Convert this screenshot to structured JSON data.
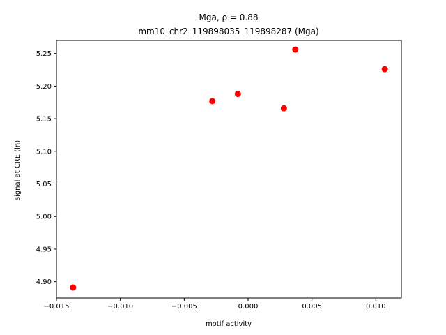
{
  "chart_data": {
    "type": "scatter",
    "title_line1": "Mga, ρ = 0.88",
    "title_line2": "mm10_chr2_119898035_119898287 (Mga)",
    "xlabel": "motif activity",
    "ylabel": "signal at CRE (ln)",
    "xlim": [
      -0.015,
      0.012
    ],
    "ylim": [
      4.875,
      5.27
    ],
    "xticks": [
      -0.015,
      -0.01,
      -0.005,
      0.0,
      0.005,
      0.01
    ],
    "xtick_labels": [
      "−0.015",
      "−0.010",
      "−0.005",
      "0.000",
      "0.005",
      "0.010"
    ],
    "yticks": [
      4.9,
      4.95,
      5.0,
      5.05,
      5.1,
      5.15,
      5.2,
      5.25
    ],
    "ytick_labels": [
      "4.90",
      "4.95",
      "5.00",
      "5.05",
      "5.10",
      "5.15",
      "5.20",
      "5.25"
    ],
    "grid": false,
    "marker_color": "#ff0000",
    "points": [
      {
        "x": -0.0137,
        "y": 4.891
      },
      {
        "x": -0.0028,
        "y": 5.177
      },
      {
        "x": -0.0008,
        "y": 5.188
      },
      {
        "x": 0.0028,
        "y": 5.166
      },
      {
        "x": 0.0037,
        "y": 5.256
      },
      {
        "x": 0.0107,
        "y": 5.226
      }
    ]
  }
}
